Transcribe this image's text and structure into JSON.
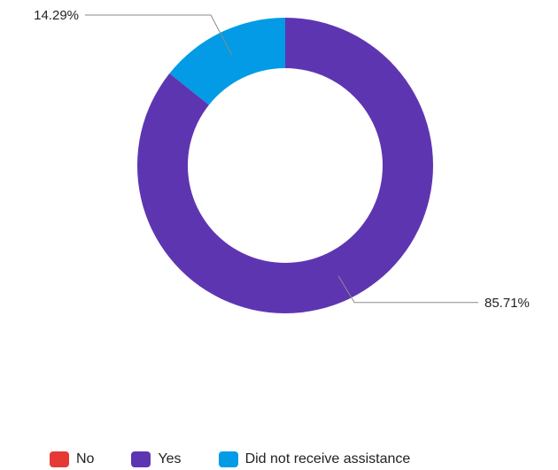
{
  "chart_data": {
    "type": "pie",
    "style": "donut",
    "categories": [
      "No",
      "Yes",
      "Did not receive assistance"
    ],
    "values": [
      0,
      85.71,
      14.29
    ],
    "data_labels": [
      "",
      "85.71%",
      "14.29%"
    ],
    "colors": [
      "#e53935",
      "#5e35b1",
      "#039be5"
    ],
    "legend_position": "bottom",
    "title": ""
  },
  "legend": {
    "items": [
      {
        "label": "No",
        "color": "#e53935"
      },
      {
        "label": "Yes",
        "color": "#5e35b1"
      },
      {
        "label": "Did not receive assistance",
        "color": "#039be5"
      }
    ]
  }
}
